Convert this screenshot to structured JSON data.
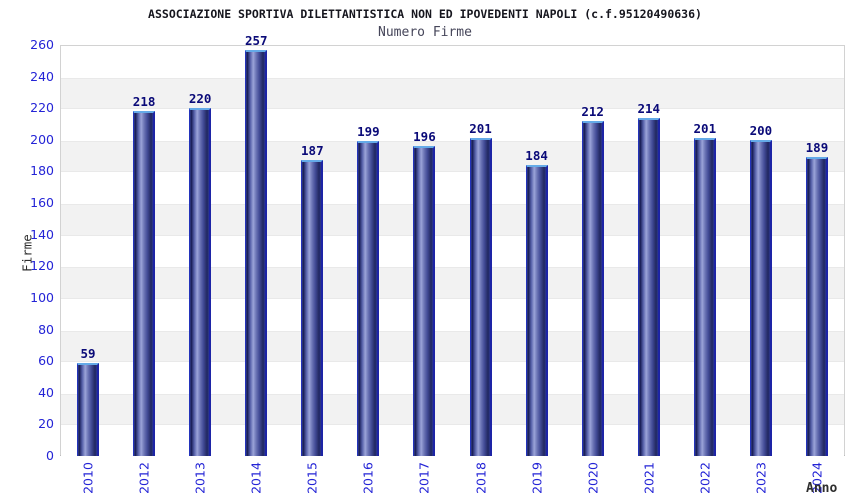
{
  "title": "ASSOCIAZIONE SPORTIVA DILETTANTISTICA NON ED IPOVEDENTI NAPOLI (c.f.95120490636)",
  "subtitle": "Numero Firme",
  "chart_data": {
    "type": "bar",
    "title": "ASSOCIAZIONE SPORTIVA DILETTANTISTICA NON ED IPOVEDENTI NAPOLI (c.f.95120490636)",
    "subtitle": "Numero Firme",
    "categories": [
      "2010",
      "2012",
      "2013",
      "2014",
      "2015",
      "2016",
      "2017",
      "2018",
      "2019",
      "2020",
      "2021",
      "2022",
      "2023",
      "2024"
    ],
    "values": [
      59,
      218,
      220,
      257,
      187,
      199,
      196,
      201,
      184,
      212,
      214,
      201,
      200,
      189
    ],
    "xlabel": "Anno",
    "ylabel": "Firme",
    "ylim": [
      0,
      260
    ],
    "ytick_step": 20,
    "grid": "alternating-horizontal-bands",
    "legend_position": "none",
    "colors": {
      "bar_dark": "#14194f",
      "bar_light": "#9aa3d8",
      "bar_border": "#2333bb",
      "bar_top_cap": "#64aae8",
      "tick_label": "#2424d6",
      "value_label": "#0a0a78",
      "band_gray": "#f2f2f2",
      "band_white": "#ffffff",
      "plot_border": "#d2d2d2",
      "title_color": "#16161e",
      "subtitle_color": "#46465a",
      "axis_title_color": "#2e2e2e"
    }
  }
}
